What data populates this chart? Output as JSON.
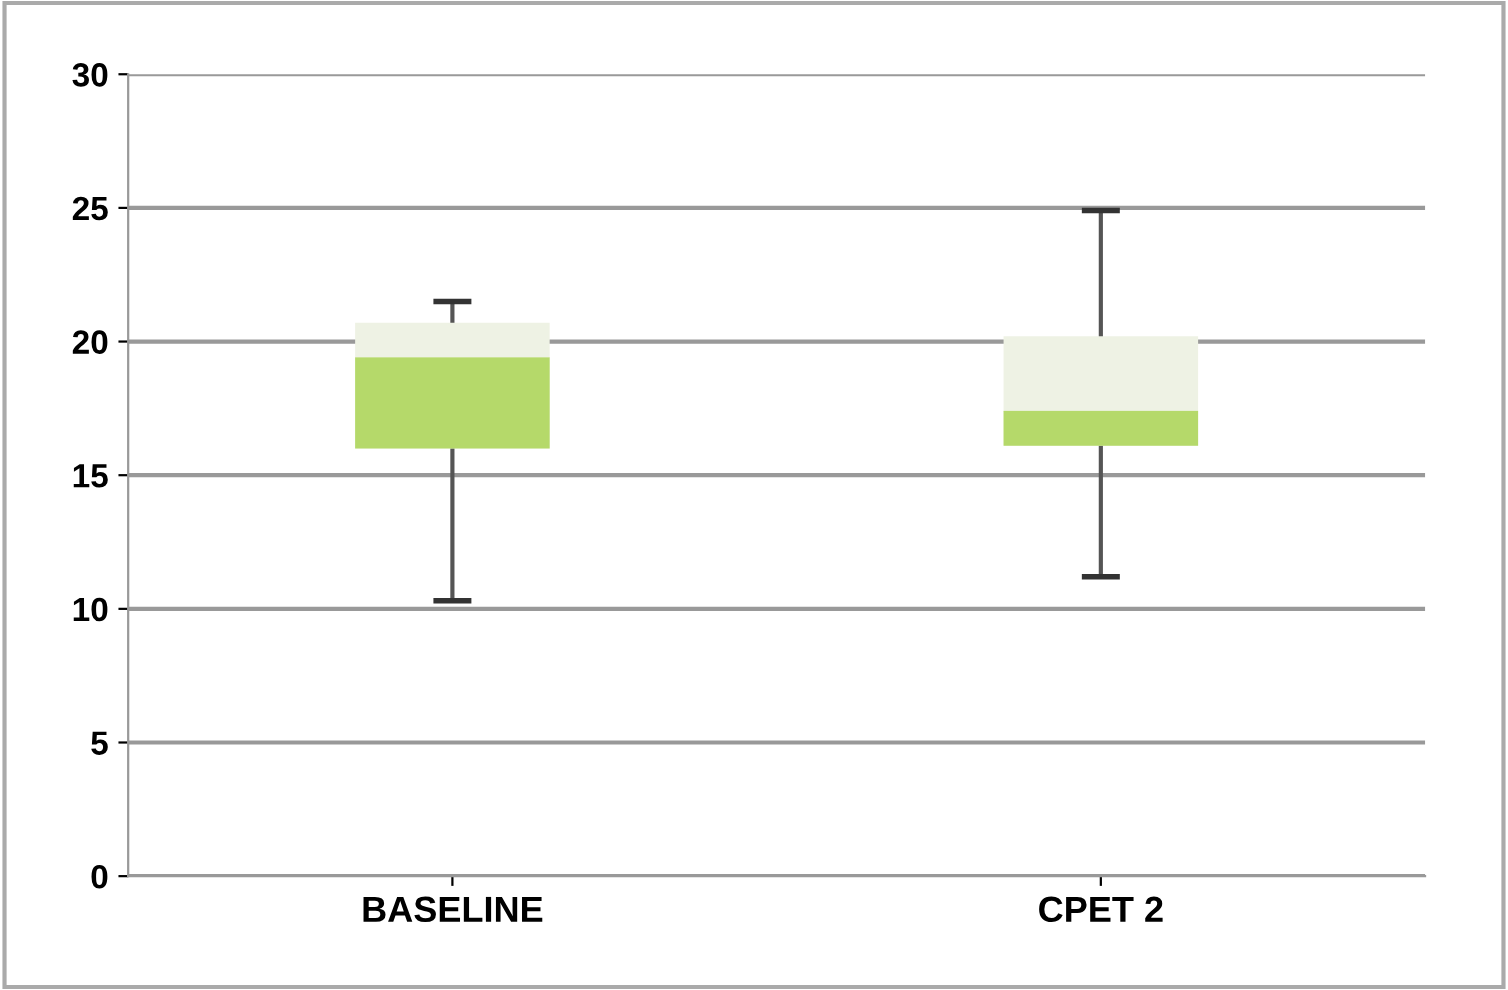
{
  "chart_data": {
    "type": "box",
    "categories": [
      "BASELINE",
      "CPET 2"
    ],
    "series": [
      {
        "color": "#b5d96a",
        "boxes": [
          {
            "low": 10.3,
            "q1": 16.0,
            "median": 19.4,
            "q3": 20.7,
            "high": 21.5
          },
          {
            "low": 11.2,
            "q1": 16.1,
            "median": 17.4,
            "q3": 20.2,
            "high": 24.9
          }
        ]
      }
    ],
    "ylim": [
      0,
      30
    ],
    "yticks": [
      0,
      5,
      10,
      15,
      20,
      25,
      30
    ],
    "grid": "y",
    "legend": false
  }
}
